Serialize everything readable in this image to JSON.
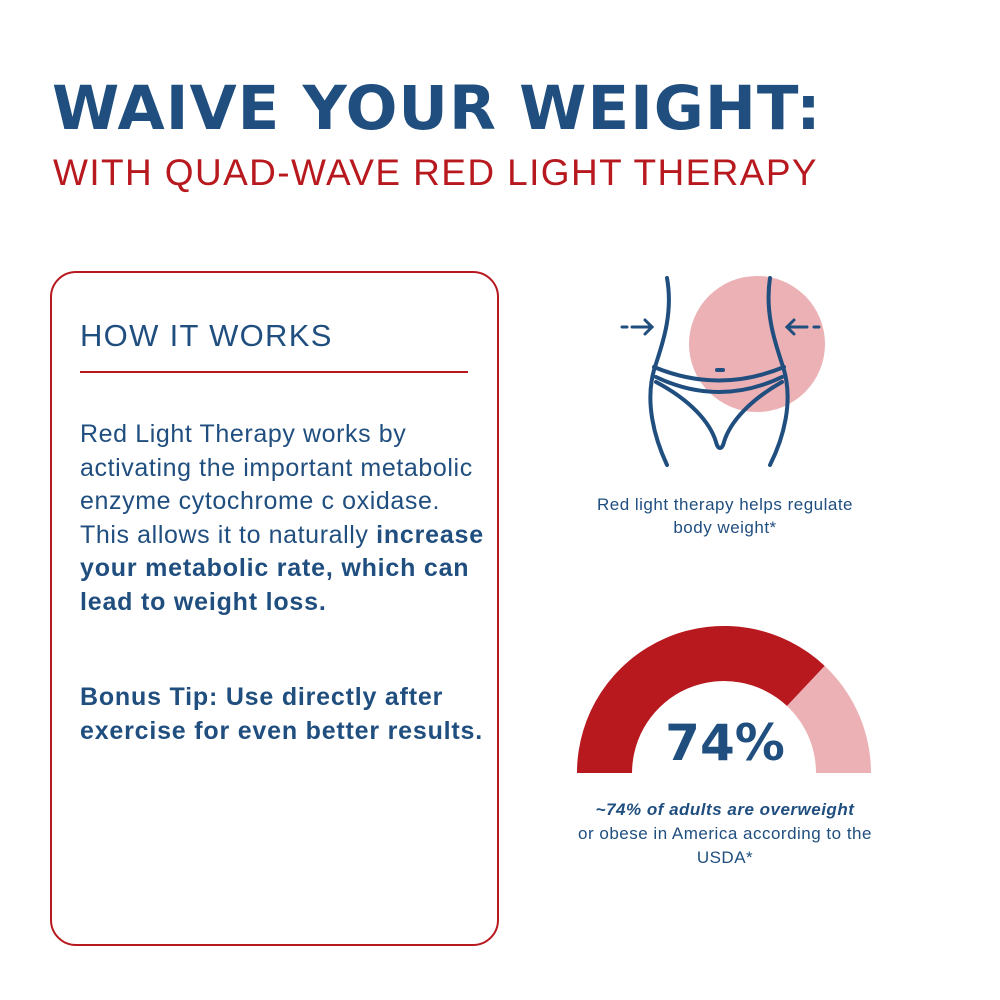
{
  "header": {
    "title": "WAIVE YOUR WEIGHT:",
    "subtitle": "WITH QUAD-WAVE RED LIGHT THERAPY"
  },
  "how_it_works": {
    "heading": "HOW IT WORKS",
    "body_intro": "Red Light Therapy works by activating the important metabolic enzyme cytochrome c oxidase. This allows it to naturally ",
    "body_emphasis": "increase your metabolic rate, which can lead to weight loss.",
    "bonus_tip": "Bonus Tip: Use directly after exercise for even better results."
  },
  "waist_graphic": {
    "icon": "waist-icon",
    "caption": "Red light therapy helps regulate body weight*"
  },
  "overweight_stat": {
    "percent": 74,
    "value_text": "74%",
    "caption_emphasis": "~74% of adults are overweight",
    "caption_rest": "or obese in America according to the USDA*"
  },
  "colors": {
    "navy": "#1f4e7f",
    "red": "#b7191f",
    "pink": "#ebb1b4"
  }
}
